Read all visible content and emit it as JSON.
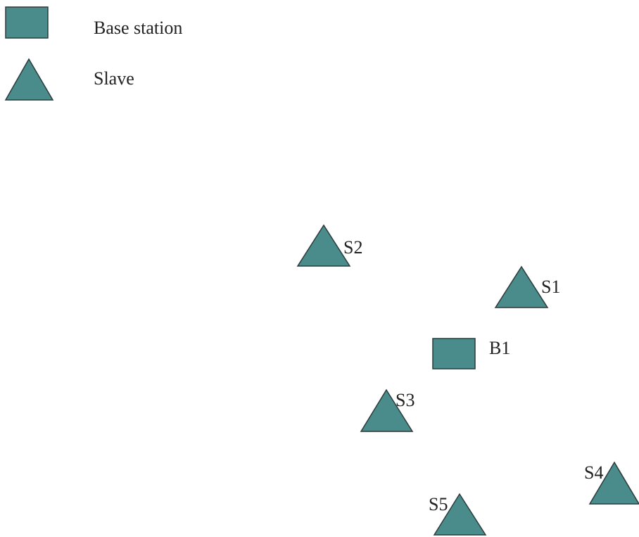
{
  "legend": {
    "base_station_label": "Base station",
    "slave_label": "Slave"
  },
  "nodes": [
    {
      "id": "S2",
      "type": "slave",
      "label": "S2"
    },
    {
      "id": "S1",
      "type": "slave",
      "label": "S1"
    },
    {
      "id": "B1",
      "type": "base",
      "label": "B1"
    },
    {
      "id": "S3",
      "type": "slave",
      "label": "S3"
    },
    {
      "id": "S4",
      "type": "slave",
      "label": "S4"
    },
    {
      "id": "S5",
      "type": "slave",
      "label": "S5"
    }
  ],
  "colors": {
    "fill": "#4a8b8b",
    "stroke": "#2a3b3b"
  }
}
